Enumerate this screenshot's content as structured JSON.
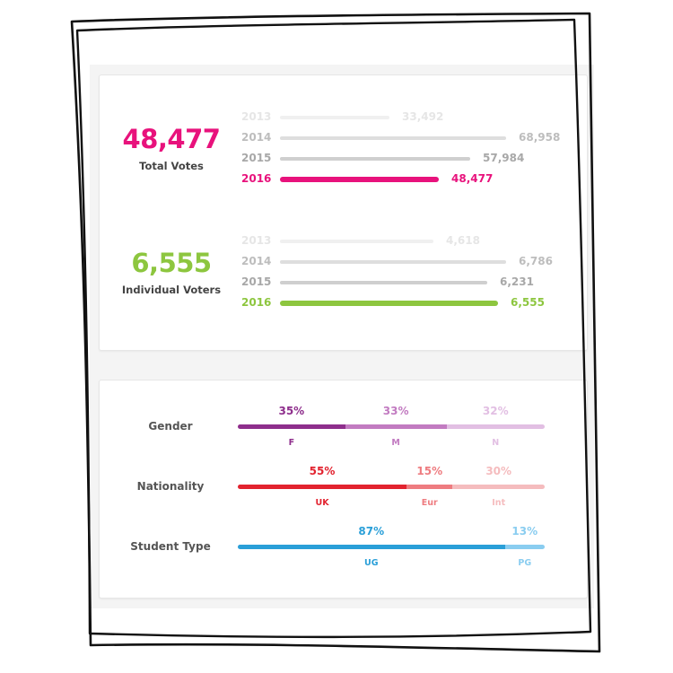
{
  "summary": [
    {
      "value": "48,477",
      "label": "Total Votes",
      "color": "#e8127c",
      "years": [
        {
          "year": "2013",
          "value": 33492,
          "value_label": "33,492",
          "color": "#f0f0f0",
          "text_color": "#e6e6e6"
        },
        {
          "year": "2014",
          "value": 68958,
          "value_label": "68,958",
          "color": "#dedede",
          "text_color": "#bdbdbd"
        },
        {
          "year": "2015",
          "value": 57984,
          "value_label": "57,984",
          "color": "#cfcfcf",
          "text_color": "#a8a8a8"
        },
        {
          "year": "2016",
          "value": 48477,
          "value_label": "48,477",
          "color": "#e8127c",
          "text_color": "#e8127c",
          "current": true
        }
      ]
    },
    {
      "value": "6,555",
      "label": "Individual Voters",
      "color": "#8dc63f",
      "years": [
        {
          "year": "2013",
          "value": 4618,
          "value_label": "4,618",
          "color": "#f0f0f0",
          "text_color": "#e6e6e6"
        },
        {
          "year": "2014",
          "value": 6786,
          "value_label": "6,786",
          "color": "#dedede",
          "text_color": "#bdbdbd"
        },
        {
          "year": "2015",
          "value": 6231,
          "value_label": "6,231",
          "color": "#cfcfcf",
          "text_color": "#a8a8a8"
        },
        {
          "year": "2016",
          "value": 6555,
          "value_label": "6,555",
          "color": "#8dc63f",
          "text_color": "#8dc63f",
          "current": true
        }
      ]
    }
  ],
  "chart_data": {
    "type": "bar",
    "stacked_percent": true,
    "rows": [
      {
        "label": "Gender",
        "segments": [
          {
            "category": "F",
            "percent": 35,
            "percent_label": "35%",
            "color": "#8e2e8c"
          },
          {
            "category": "M",
            "percent": 33,
            "percent_label": "33%",
            "color": "#c27bc1"
          },
          {
            "category": "N",
            "percent": 32,
            "percent_label": "32%",
            "color": "#e2bfe3"
          }
        ]
      },
      {
        "label": "Nationality",
        "segments": [
          {
            "category": "UK",
            "percent": 55,
            "percent_label": "55%",
            "color": "#e2232f"
          },
          {
            "category": "Eur",
            "percent": 15,
            "percent_label": "15%",
            "color": "#ee7c80"
          },
          {
            "category": "Int",
            "percent": 30,
            "percent_label": "30%",
            "color": "#f5bcbe"
          }
        ]
      },
      {
        "label": "Student Type",
        "segments": [
          {
            "category": "UG",
            "percent": 87,
            "percent_label": "87%",
            "color": "#2a9fd8"
          },
          {
            "category": "PG",
            "percent": 13,
            "percent_label": "13%",
            "color": "#8acdf0"
          }
        ]
      }
    ]
  }
}
